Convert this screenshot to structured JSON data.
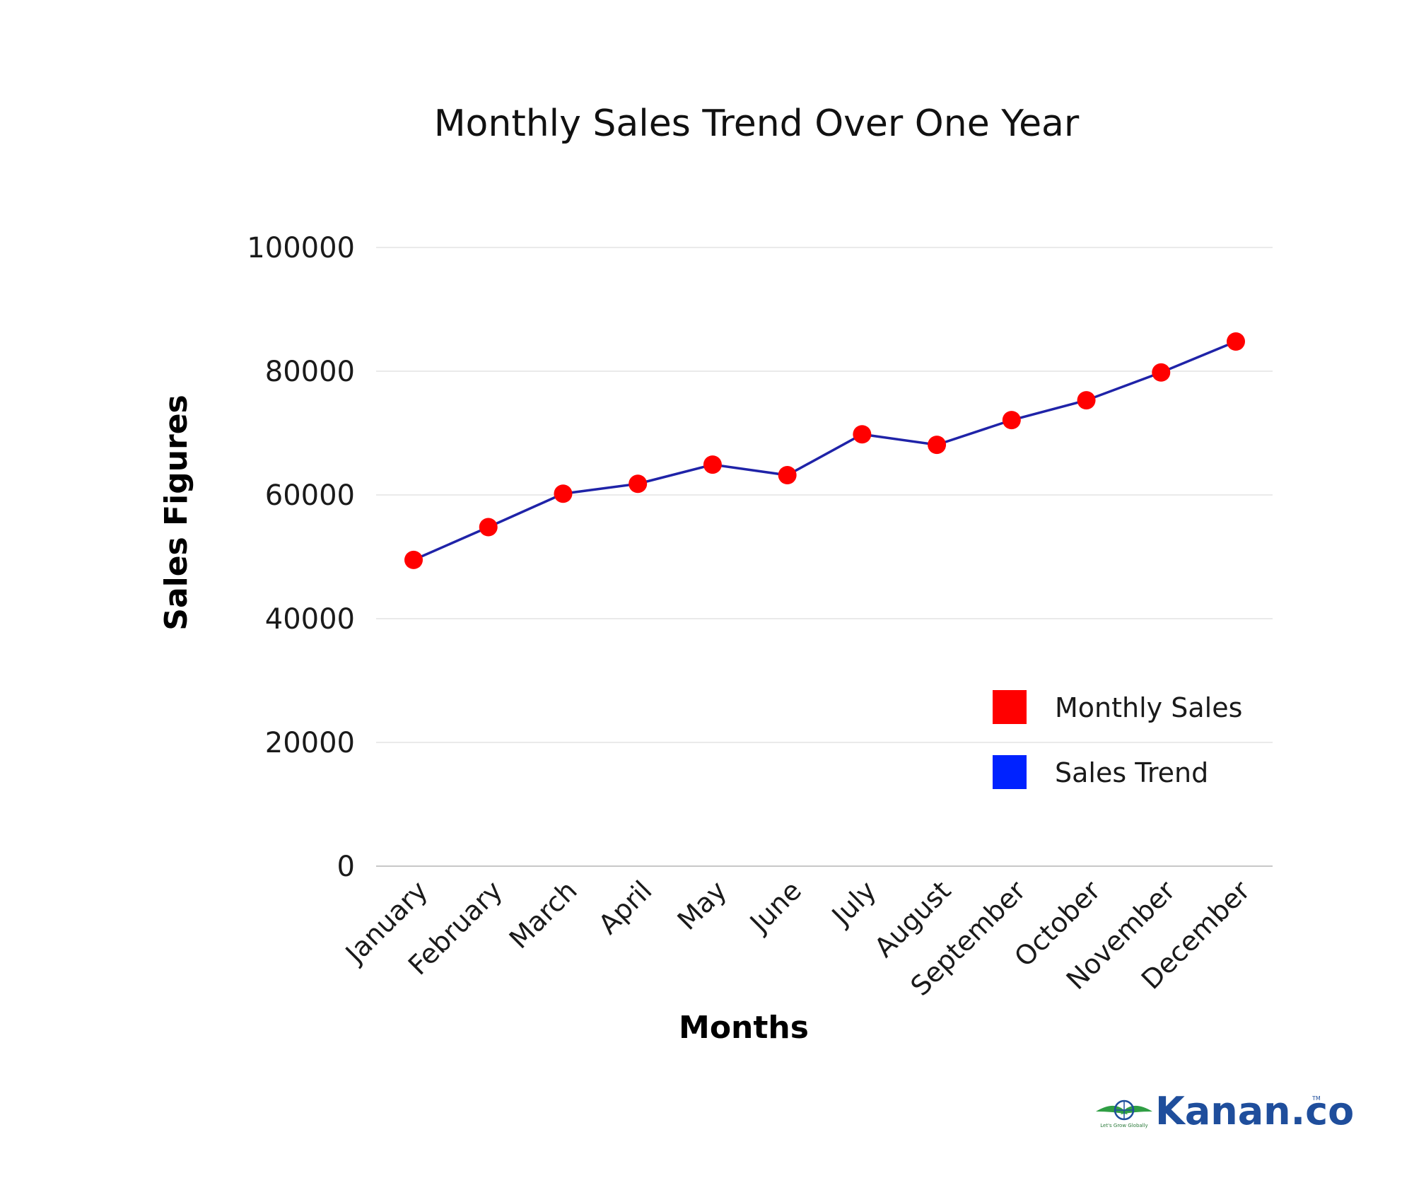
{
  "chart_data": {
    "type": "line",
    "title": "Monthly Sales Trend Over One Year",
    "xlabel": "Months",
    "ylabel": "Sales Figures",
    "categories": [
      "January",
      "February",
      "March",
      "April",
      "May",
      "June",
      "July",
      "August",
      "September",
      "October",
      "November",
      "December"
    ],
    "series": [
      {
        "name": "Monthly Sales",
        "values": [
          49500,
          54800,
          60200,
          61800,
          64900,
          63200,
          69800,
          68100,
          72100,
          75300,
          79800,
          84800
        ]
      }
    ],
    "ylim": [
      0,
      100000
    ],
    "yticks": [
      "0",
      "20000",
      "40000",
      "60000",
      "80000",
      "100000"
    ],
    "grid": true,
    "legend": [
      {
        "label": "Monthly Sales",
        "color": "#ff0000"
      },
      {
        "label": "Sales Trend",
        "color": "#0022ff"
      }
    ],
    "legend_position": "lower-right",
    "colors": {
      "markers": "#ff0000",
      "line": "#1f23a8"
    }
  },
  "branding": {
    "name": "Kanan.co",
    "tagline": "Let's Grow Globally",
    "trademark": "TM"
  }
}
